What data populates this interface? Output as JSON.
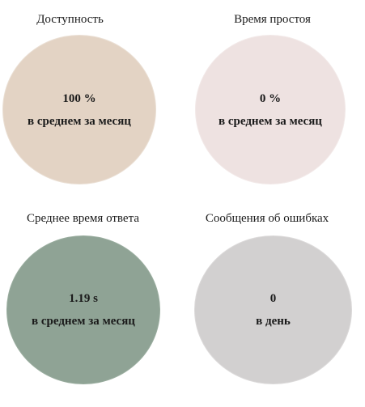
{
  "cards": [
    {
      "title": "Доступность",
      "value": "100 %",
      "caption": "в среднем за месяц",
      "color": "#e3d3c4"
    },
    {
      "title": "Время простоя",
      "value": "0 %",
      "caption": "в среднем за месяц",
      "color": "#eee2e1"
    },
    {
      "title": "Среднее время ответа",
      "value": "1.19 s",
      "caption": "в среднем за месяц",
      "color": "#8fa395"
    },
    {
      "title": "Сообщения об ошибках",
      "value": "0",
      "caption": "в день",
      "color": "#d2d0d0"
    }
  ]
}
